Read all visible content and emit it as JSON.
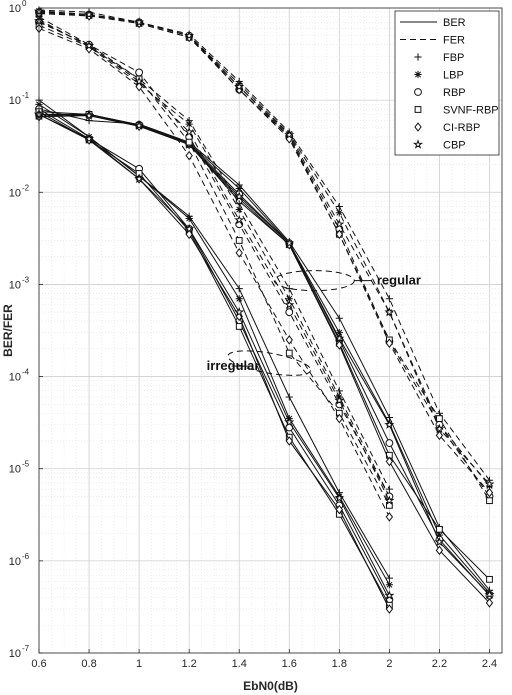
{
  "chart_data": {
    "type": "line",
    "xlabel": "EbN0(dB)",
    "ylabel": "BER/FER",
    "xlim": [
      0.6,
      2.45
    ],
    "ylim": [
      1e-07,
      1
    ],
    "yscale": "log",
    "grid": true,
    "legend_position": "top-right",
    "x_ticks": [
      "0.6",
      "0.8",
      "1",
      "1.2",
      "1.4",
      "1.6",
      "1.8",
      "2",
      "2.2",
      "2.4"
    ],
    "y_tick_bases": [
      "10",
      "10",
      "10",
      "10",
      "10",
      "10",
      "10",
      "10"
    ],
    "y_tick_exps": [
      "0",
      "-1",
      "-2",
      "-3",
      "-4",
      "-5",
      "-6",
      "-7"
    ],
    "legend_linestyles": [
      {
        "label": "BER",
        "style": "solid"
      },
      {
        "label": "FER",
        "style": "dashed"
      }
    ],
    "legend_markers": [
      {
        "label": "FBP",
        "marker": "plus"
      },
      {
        "label": "LBP",
        "marker": "asterisk"
      },
      {
        "label": "RBP",
        "marker": "circle"
      },
      {
        "label": "SVNF-RBP",
        "marker": "square"
      },
      {
        "label": "CI-RBP",
        "marker": "diamond"
      },
      {
        "label": "CBP",
        "marker": "star"
      }
    ],
    "annotations": [
      {
        "text": "regular",
        "x": 1.95,
        "y": 0.0011
      },
      {
        "text": "irregular",
        "x": 1.27,
        "y": 0.00013
      }
    ],
    "series": [
      {
        "style": "solid",
        "marker": "plus",
        "x": [
          0.6,
          0.8,
          1.0,
          1.2,
          1.4,
          1.6,
          1.8,
          2.0,
          2.2,
          2.4
        ],
        "y": [
          0.08,
          0.06,
          0.055,
          0.035,
          0.012,
          0.0029,
          0.00043,
          3.6e-05,
          2.3e-06,
          4.8e-07
        ]
      },
      {
        "style": "solid",
        "marker": "asterisk",
        "x": [
          0.6,
          0.8,
          1.0,
          1.2,
          1.4,
          1.6,
          1.8,
          2.0,
          2.2,
          2.4
        ],
        "y": [
          0.075,
          0.07,
          0.054,
          0.034,
          0.011,
          0.0028,
          0.0003,
          3.1e-05,
          1.9e-06,
          4.5e-07
        ]
      },
      {
        "style": "solid",
        "marker": "circle",
        "x": [
          0.6,
          0.8,
          1.0,
          1.2,
          1.4,
          1.6,
          1.8,
          2.0,
          2.2,
          2.4
        ],
        "y": [
          0.07,
          0.07,
          0.054,
          0.034,
          0.0095,
          0.0028,
          0.00025,
          1.9e-05,
          1.7e-06,
          4.2e-07
        ]
      },
      {
        "style": "solid",
        "marker": "square",
        "x": [
          0.6,
          0.8,
          1.0,
          1.2,
          1.4,
          1.6,
          1.8,
          2.0,
          2.2,
          2.4
        ],
        "y": [
          0.067,
          0.07,
          0.053,
          0.033,
          0.0085,
          0.0027,
          0.00023,
          1.4e-05,
          2.2e-06,
          6.3e-07
        ]
      },
      {
        "style": "solid",
        "marker": "diamond",
        "x": [
          0.6,
          0.8,
          1.0,
          1.2,
          1.4,
          1.6,
          1.8,
          2.0,
          2.2,
          2.4
        ],
        "y": [
          0.066,
          0.068,
          0.052,
          0.033,
          0.008,
          0.0027,
          0.00022,
          1.2e-05,
          1.3e-06,
          3.5e-07
        ]
      },
      {
        "style": "solid",
        "marker": "star",
        "x": [
          0.6,
          0.8,
          1.0,
          1.2,
          1.4,
          1.6,
          1.8,
          2.0,
          2.2,
          2.4
        ],
        "y": [
          0.07,
          0.068,
          0.053,
          0.033,
          0.009,
          0.0028,
          0.00026,
          3e-05,
          1.6e-06,
          4.3e-07
        ]
      },
      {
        "style": "dashed",
        "marker": "plus",
        "x": [
          0.6,
          0.8,
          1.0,
          1.2,
          1.4,
          1.6,
          1.8,
          2.0,
          2.2,
          2.4
        ],
        "y": [
          0.95,
          0.9,
          0.7,
          0.52,
          0.16,
          0.045,
          0.007,
          0.0007,
          4e-05,
          7.5e-06
        ]
      },
      {
        "style": "dashed",
        "marker": "asterisk",
        "x": [
          0.6,
          0.8,
          1.0,
          1.2,
          1.4,
          1.6,
          1.8,
          2.0,
          2.2,
          2.4
        ],
        "y": [
          0.93,
          0.85,
          0.7,
          0.5,
          0.15,
          0.043,
          0.006,
          0.0005,
          3e-05,
          6.5e-06
        ]
      },
      {
        "style": "dashed",
        "marker": "circle",
        "x": [
          0.6,
          0.8,
          1.0,
          1.2,
          1.4,
          1.6,
          1.8,
          2.0,
          2.2,
          2.4
        ],
        "y": [
          0.9,
          0.85,
          0.7,
          0.5,
          0.13,
          0.04,
          0.004,
          0.00024,
          3e-05,
          5e-06
        ]
      },
      {
        "style": "dashed",
        "marker": "square",
        "x": [
          0.6,
          0.8,
          1.0,
          1.2,
          1.4,
          1.6,
          1.8,
          2.0,
          2.2,
          2.4
        ],
        "y": [
          0.88,
          0.83,
          0.68,
          0.48,
          0.14,
          0.04,
          0.0035,
          0.00025,
          3.5e-05,
          4.5e-06
        ]
      },
      {
        "style": "dashed",
        "marker": "diamond",
        "x": [
          0.6,
          0.8,
          1.0,
          1.2,
          1.4,
          1.6,
          1.8,
          2.0,
          2.2,
          2.4
        ],
        "y": [
          0.87,
          0.82,
          0.68,
          0.48,
          0.13,
          0.038,
          0.0035,
          0.00023,
          2.3e-05,
          5.5e-06
        ]
      },
      {
        "style": "dashed",
        "marker": "star",
        "x": [
          0.6,
          0.8,
          1.0,
          1.2,
          1.4,
          1.6,
          1.8,
          2.0,
          2.2,
          2.4
        ],
        "y": [
          0.92,
          0.85,
          0.7,
          0.5,
          0.14,
          0.042,
          0.0045,
          0.0005,
          2.7e-05,
          6.8e-06
        ]
      },
      {
        "style": "solid",
        "marker": "plus",
        "x": [
          0.6,
          0.8,
          1.0,
          1.2,
          1.4,
          1.6,
          1.8,
          2.0
        ],
        "y": [
          0.1,
          0.04,
          0.015,
          0.0055,
          0.0009,
          6e-05,
          5.5e-06,
          6.5e-07
        ]
      },
      {
        "style": "solid",
        "marker": "asterisk",
        "x": [
          0.6,
          0.8,
          1.0,
          1.2,
          1.4,
          1.6,
          1.8,
          2.0
        ],
        "y": [
          0.09,
          0.04,
          0.015,
          0.0052,
          0.0007,
          3.5e-05,
          5e-06,
          5.5e-07
        ]
      },
      {
        "style": "solid",
        "marker": "circle",
        "x": [
          0.6,
          0.8,
          1.0,
          1.2,
          1.4,
          1.6,
          1.8,
          2.0
        ],
        "y": [
          0.08,
          0.038,
          0.018,
          0.004,
          0.0004,
          2.8e-05,
          4e-06,
          3.8e-07
        ]
      },
      {
        "style": "solid",
        "marker": "square",
        "x": [
          0.6,
          0.8,
          1.0,
          1.2,
          1.4,
          1.6,
          1.8,
          2.0
        ],
        "y": [
          0.075,
          0.037,
          0.016,
          0.0038,
          0.00035,
          2.2e-05,
          3.2e-06,
          3.3e-07
        ]
      },
      {
        "style": "solid",
        "marker": "diamond",
        "x": [
          0.6,
          0.8,
          1.0,
          1.2,
          1.4,
          1.6,
          1.8,
          2.0
        ],
        "y": [
          0.07,
          0.037,
          0.014,
          0.0035,
          0.00045,
          2e-05,
          3.6e-06,
          3e-07
        ]
      },
      {
        "style": "solid",
        "marker": "star",
        "x": [
          0.6,
          0.8,
          1.0,
          1.2,
          1.4,
          1.6,
          1.8,
          2.0
        ],
        "y": [
          0.07,
          0.038,
          0.014,
          0.004,
          0.0005,
          3.2e-05,
          4.8e-06,
          4.2e-07
        ]
      },
      {
        "style": "dashed",
        "marker": "plus",
        "x": [
          0.6,
          0.8,
          1.0,
          1.2,
          1.4,
          1.6,
          1.8,
          2.0
        ],
        "y": [
          0.8,
          0.4,
          0.17,
          0.06,
          0.0075,
          0.0009,
          7e-05,
          6e-06
        ]
      },
      {
        "style": "dashed",
        "marker": "asterisk",
        "x": [
          0.6,
          0.8,
          1.0,
          1.2,
          1.4,
          1.6,
          1.8,
          2.0
        ],
        "y": [
          0.75,
          0.38,
          0.15,
          0.055,
          0.0065,
          0.0007,
          6e-05,
          5e-06
        ]
      },
      {
        "style": "dashed",
        "marker": "circle",
        "x": [
          0.6,
          0.8,
          1.0,
          1.2,
          1.4,
          1.6,
          1.8,
          2.0
        ],
        "y": [
          0.7,
          0.4,
          0.2,
          0.04,
          0.0045,
          0.0005,
          5e-05,
          5e-06
        ]
      },
      {
        "style": "dashed",
        "marker": "square",
        "x": [
          0.6,
          0.8,
          1.0,
          1.2,
          1.4,
          1.6,
          1.8,
          2.0
        ],
        "y": [
          0.65,
          0.38,
          0.17,
          0.035,
          0.003,
          0.00018,
          4e-05,
          4e-06
        ]
      },
      {
        "style": "dashed",
        "marker": "diamond",
        "x": [
          0.6,
          0.8,
          1.0,
          1.2,
          1.4,
          1.6,
          1.8,
          2.0
        ],
        "y": [
          0.6,
          0.36,
          0.14,
          0.025,
          0.0022,
          0.00025,
          3.5e-05,
          3e-06
        ]
      },
      {
        "style": "dashed",
        "marker": "star",
        "x": [
          0.6,
          0.8,
          1.0,
          1.2,
          1.4,
          1.6,
          1.8,
          2.0
        ],
        "y": [
          0.72,
          0.39,
          0.16,
          0.045,
          0.005,
          0.0006,
          5.5e-05,
          4.5e-06
        ]
      }
    ]
  }
}
